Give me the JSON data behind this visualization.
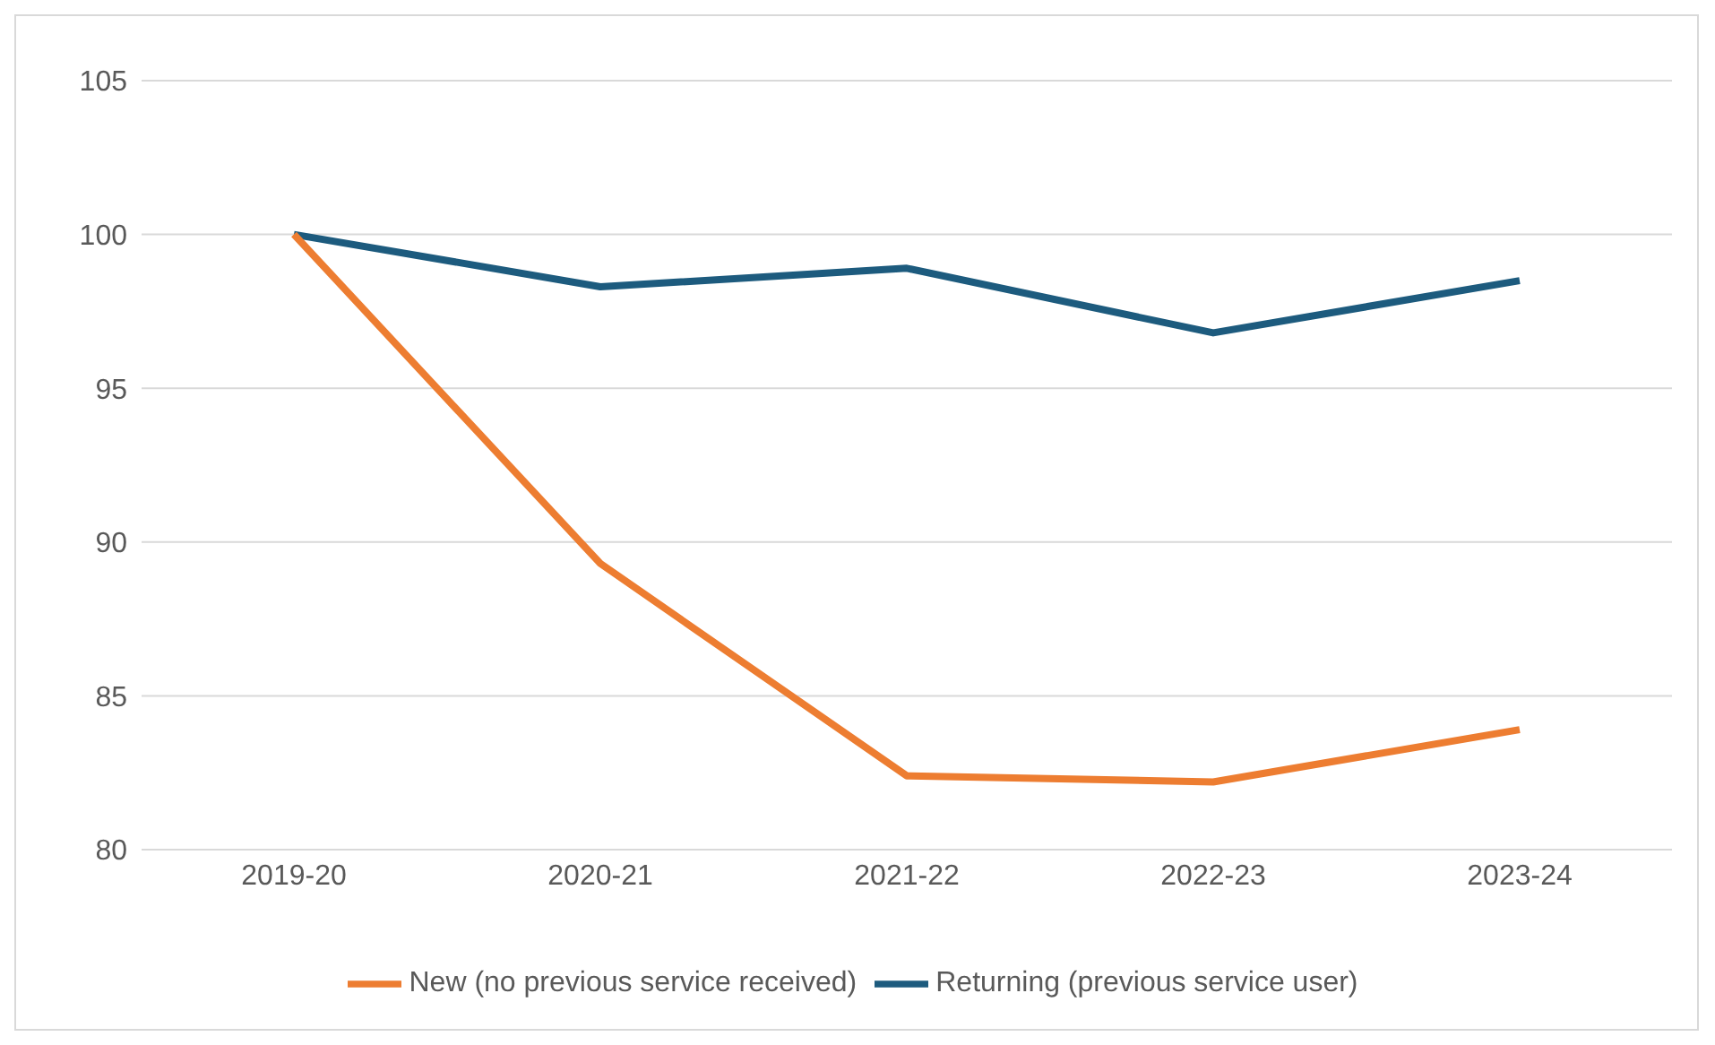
{
  "chart_data": {
    "type": "line",
    "categories": [
      "2019-20",
      "2020-21",
      "2021-22",
      "2022-23",
      "2023-24"
    ],
    "series": [
      {
        "name": "Returning (previous service user)",
        "color": "#1d5b7e",
        "values": [
          100,
          98.3,
          98.9,
          96.8,
          98.5
        ]
      },
      {
        "name": "New (no previous service received)",
        "color": "#ed7d31",
        "values": [
          100,
          89.3,
          82.4,
          82.2,
          83.9
        ]
      }
    ],
    "ylim": [
      80,
      105
    ],
    "yticks": [
      80,
      85,
      90,
      95,
      100,
      105
    ],
    "grid": "y",
    "legend": "bottom",
    "marker": "none",
    "line_style": "solid"
  }
}
